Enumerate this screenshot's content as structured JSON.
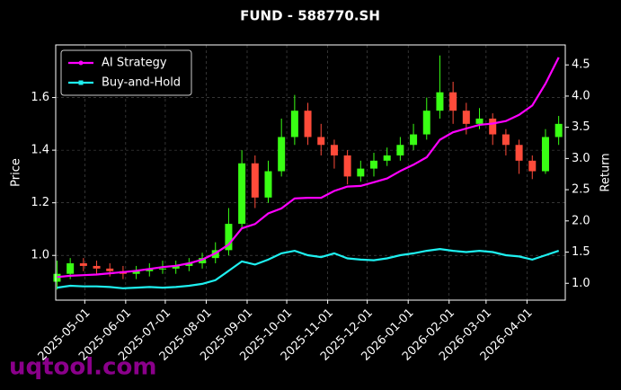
{
  "chart_data": {
    "type": "candlestick",
    "title": "FUND - 588770.SH",
    "ylabel": "Price",
    "y2label": "Return",
    "x": [
      "2025-04-10",
      "2025-04-20",
      "2025-04-30",
      "2025-05-10",
      "2025-05-20",
      "2025-05-30",
      "2025-06-09",
      "2025-06-19",
      "2025-06-29",
      "2025-07-09",
      "2025-07-19",
      "2025-07-29",
      "2025-08-08",
      "2025-08-18",
      "2025-08-28",
      "2025-09-07",
      "2025-09-17",
      "2025-09-27",
      "2025-10-07",
      "2025-10-17",
      "2025-10-27",
      "2025-11-06",
      "2025-11-16",
      "2025-11-26",
      "2025-12-06",
      "2025-12-16",
      "2025-12-26",
      "2026-01-05",
      "2026-01-15",
      "2026-01-25",
      "2026-02-04",
      "2026-02-14",
      "2026-02-24",
      "2026-03-06",
      "2026-03-16",
      "2026-03-26",
      "2026-04-05",
      "2026-04-15",
      "2026-04-25"
    ],
    "open": [
      0.9,
      0.93,
      0.97,
      0.96,
      0.95,
      0.94,
      0.93,
      0.94,
      0.95,
      0.95,
      0.96,
      0.97,
      0.99,
      1.02,
      1.12,
      1.35,
      1.22,
      1.32,
      1.45,
      1.55,
      1.45,
      1.42,
      1.38,
      1.3,
      1.33,
      1.36,
      1.38,
      1.42,
      1.46,
      1.55,
      1.62,
      1.55,
      1.5,
      1.52,
      1.46,
      1.42,
      1.36,
      1.32,
      1.45
    ],
    "high": [
      0.98,
      0.99,
      0.99,
      0.98,
      0.97,
      0.96,
      0.96,
      0.97,
      0.98,
      0.98,
      0.99,
      1.01,
      1.05,
      1.18,
      1.4,
      1.38,
      1.36,
      1.52,
      1.61,
      1.58,
      1.5,
      1.44,
      1.4,
      1.36,
      1.39,
      1.41,
      1.45,
      1.5,
      1.6,
      1.76,
      1.66,
      1.58,
      1.56,
      1.54,
      1.48,
      1.44,
      1.38,
      1.48,
      1.53
    ],
    "low": [
      0.87,
      0.91,
      0.94,
      0.93,
      0.92,
      0.91,
      0.91,
      0.92,
      0.93,
      0.93,
      0.94,
      0.95,
      0.97,
      1.0,
      1.1,
      1.18,
      1.2,
      1.3,
      1.42,
      1.42,
      1.38,
      1.33,
      1.27,
      1.28,
      1.3,
      1.34,
      1.36,
      1.4,
      1.44,
      1.52,
      1.5,
      1.46,
      1.48,
      1.42,
      1.38,
      1.31,
      1.29,
      1.31,
      1.42
    ],
    "close": [
      0.93,
      0.97,
      0.96,
      0.95,
      0.94,
      0.93,
      0.94,
      0.95,
      0.95,
      0.96,
      0.97,
      0.99,
      1.02,
      1.12,
      1.35,
      1.22,
      1.32,
      1.45,
      1.55,
      1.45,
      1.42,
      1.38,
      1.3,
      1.33,
      1.36,
      1.38,
      1.42,
      1.46,
      1.55,
      1.62,
      1.55,
      1.5,
      1.52,
      1.46,
      1.42,
      1.36,
      1.32,
      1.45,
      1.5
    ],
    "up_color": "#39ff14",
    "down_color": "#ff4b3a",
    "series": [
      {
        "name": "AI Strategy",
        "color": "#ff00ff",
        "axis": "y2",
        "marker": "circle",
        "values": [
          1.1,
          1.12,
          1.13,
          1.14,
          1.16,
          1.18,
          1.2,
          1.23,
          1.26,
          1.28,
          1.32,
          1.38,
          1.48,
          1.62,
          1.88,
          1.95,
          2.12,
          2.2,
          2.36,
          2.37,
          2.37,
          2.48,
          2.55,
          2.56,
          2.62,
          2.68,
          2.8,
          2.9,
          3.02,
          3.3,
          3.42,
          3.48,
          3.54,
          3.56,
          3.6,
          3.7,
          3.85,
          4.2,
          4.62
        ]
      },
      {
        "name": "Buy-and-Hold",
        "color": "#1ef0f0",
        "axis": "y2",
        "marker": "square",
        "values": [
          0.93,
          0.96,
          0.95,
          0.95,
          0.94,
          0.92,
          0.93,
          0.94,
          0.93,
          0.94,
          0.96,
          0.99,
          1.05,
          1.2,
          1.35,
          1.3,
          1.38,
          1.48,
          1.52,
          1.45,
          1.42,
          1.48,
          1.4,
          1.38,
          1.37,
          1.4,
          1.45,
          1.48,
          1.52,
          1.55,
          1.52,
          1.5,
          1.52,
          1.5,
          1.45,
          1.43,
          1.38,
          1.45,
          1.52
        ]
      }
    ],
    "xlim": [
      "2025-04-09",
      "2026-04-30"
    ],
    "xticks": [
      "2025-05-01",
      "2025-06-01",
      "2025-07-01",
      "2025-08-01",
      "2025-09-01",
      "2025-10-01",
      "2025-11-01",
      "2025-12-01",
      "2026-01-01",
      "2026-02-01",
      "2026-03-01",
      "2026-04-01"
    ],
    "ylim": [
      0.83,
      1.8
    ],
    "yticks": [
      {
        "value": 1.0,
        "label": "1.0"
      },
      1.2,
      1.4,
      1.6
    ],
    "y2lim": [
      0.73,
      4.82
    ],
    "y2ticks": [
      {
        "value": 1.0,
        "label": "1.0"
      },
      1.5,
      {
        "value": 2.0,
        "label": "2.0"
      },
      2.5,
      {
        "value": 3.0,
        "label": "3.0"
      },
      3.5,
      {
        "value": 4.0,
        "label": "4.0"
      },
      4.5
    ],
    "grid": true,
    "legend": "upper left"
  },
  "watermark": "uqtool.com"
}
